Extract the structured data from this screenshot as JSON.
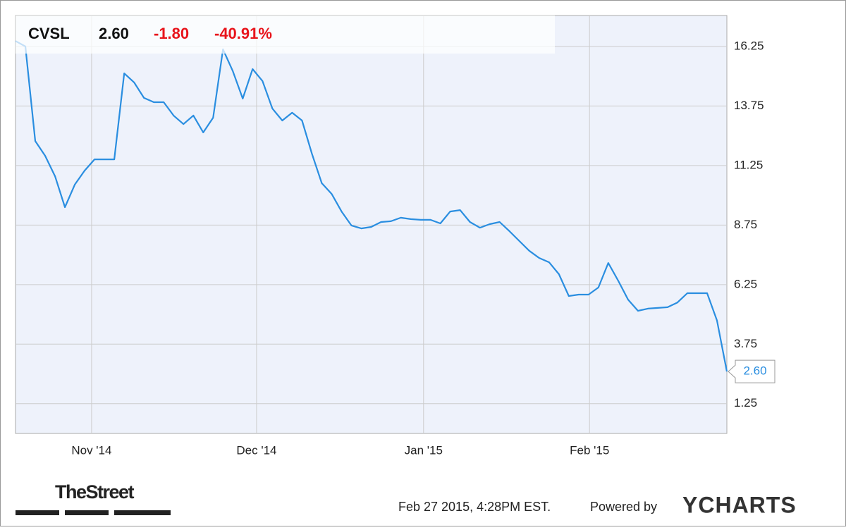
{
  "chart_data": {
    "type": "line",
    "header": {
      "symbol": "CVSL",
      "price": "2.60",
      "change": "-1.80",
      "change_pct": "-40.91%"
    },
    "series": [
      {
        "name": "CVSL",
        "color": "#2a8ee0",
        "values": [
          16.48,
          16.25,
          12.28,
          11.66,
          10.8,
          9.5,
          10.45,
          11.04,
          11.51,
          11.51,
          11.51,
          15.12,
          14.74,
          14.09,
          13.91,
          13.91,
          13.35,
          12.99,
          13.35,
          12.64,
          13.26,
          16.13,
          15.21,
          14.06,
          15.3,
          14.8,
          13.64,
          13.14,
          13.47,
          13.14,
          11.75,
          10.51,
          10.06,
          9.32,
          8.73,
          8.61,
          8.67,
          8.88,
          8.91,
          9.06,
          9.0,
          8.97,
          8.97,
          8.82,
          9.32,
          9.38,
          8.88,
          8.64,
          8.79,
          8.88,
          8.49,
          8.08,
          7.67,
          7.37,
          7.19,
          6.69,
          5.77,
          5.83,
          5.83,
          6.13,
          7.16,
          6.42,
          5.62,
          5.15,
          5.24,
          5.27,
          5.3,
          5.5,
          5.89,
          5.89,
          5.89,
          4.74,
          2.6
        ]
      }
    ],
    "xlim": [
      0,
      72
    ],
    "xticks": [
      {
        "value": 7.7,
        "label": "Nov '14"
      },
      {
        "value": 24.4,
        "label": "Dec '14"
      },
      {
        "value": 41.3,
        "label": "Jan '15"
      },
      {
        "value": 58.1,
        "label": "Feb '15"
      }
    ],
    "ylim": [
      0,
      17.55
    ],
    "yticks": [
      1.25,
      3.75,
      6.25,
      8.75,
      11.25,
      13.75,
      16.25
    ],
    "grid": true,
    "footer": {
      "timestamp": "Feb 27 2015, 4:28PM EST.",
      "powered_by": "Powered by",
      "brand": "YCHARTS",
      "source_logo": "TheStreet"
    }
  }
}
